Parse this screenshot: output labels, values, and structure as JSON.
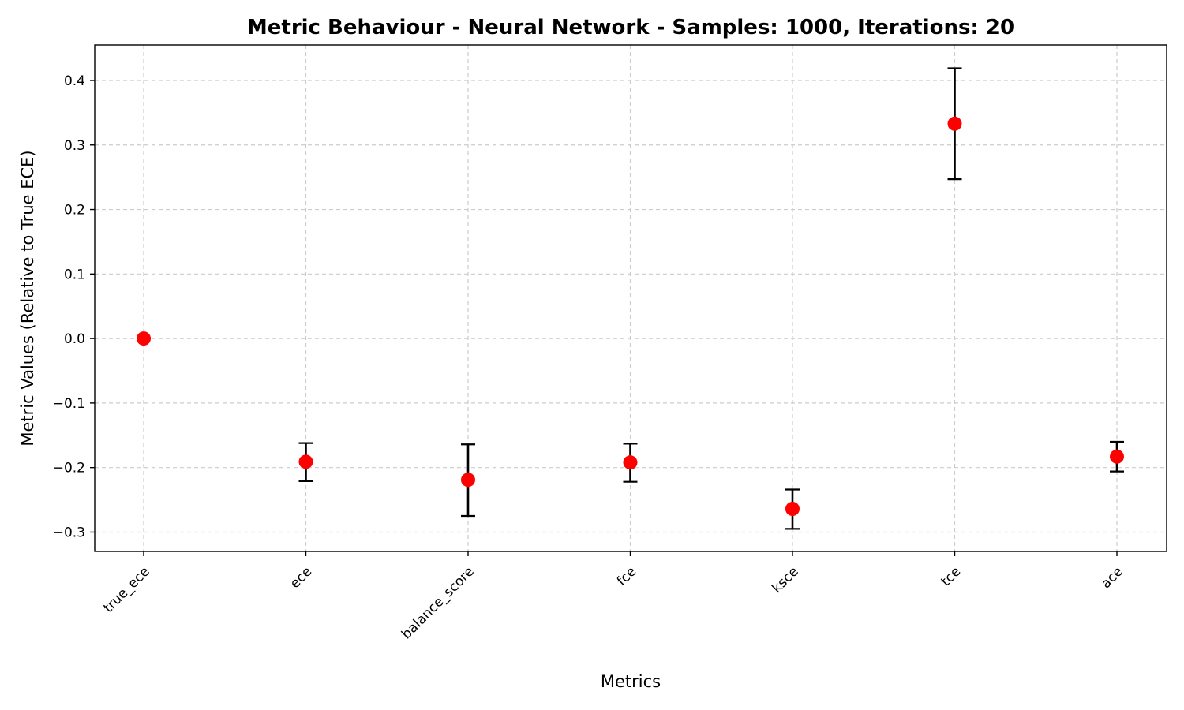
{
  "chart_data": {
    "type": "scatter",
    "title": "Metric Behaviour - Neural Network - Samples: 1000, Iterations: 20",
    "xlabel": "Metrics",
    "ylabel": "Metric Values (Relative to True ECE)",
    "categories": [
      "true_ece",
      "ece",
      "balance_score",
      "fce",
      "ksce",
      "tce",
      "ace"
    ],
    "values": [
      0.0,
      -0.191,
      -0.219,
      -0.192,
      -0.264,
      0.333,
      -0.183
    ],
    "error_low": [
      0.0,
      -0.221,
      -0.275,
      -0.222,
      -0.295,
      0.247,
      -0.206
    ],
    "error_high": [
      0.0,
      -0.162,
      -0.164,
      -0.163,
      -0.234,
      0.419,
      -0.16
    ],
    "yticks": [
      -0.3,
      -0.2,
      -0.1,
      0.0,
      0.1,
      0.2,
      0.3,
      0.4
    ],
    "ytick_labels": [
      "−0.3",
      "−0.2",
      "−0.1",
      "0.0",
      "0.1",
      "0.2",
      "0.3",
      "0.4"
    ],
    "ylim": [
      -0.33,
      0.455
    ],
    "grid": true,
    "marker_color": "#ff0000",
    "error_color": "#000000"
  }
}
